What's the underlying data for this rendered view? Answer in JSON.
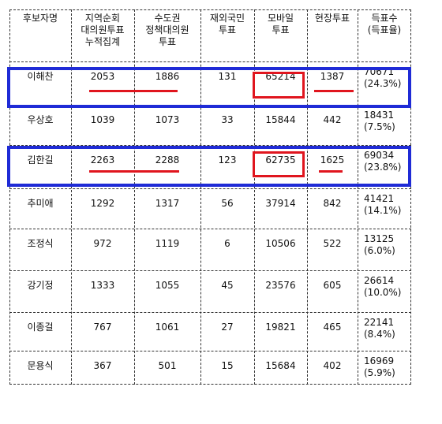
{
  "headers": [
    [
      "후보자명"
    ],
    [
      "지역순회",
      "대의원투표",
      "누적집계"
    ],
    [
      "수도권",
      "정책대의원",
      "투표"
    ],
    [
      "재외국민",
      "투표"
    ],
    [
      "모바일",
      "투표"
    ],
    [
      "현장투표"
    ],
    [
      "득표수",
      "(득표율)"
    ]
  ],
  "rows": [
    {
      "name": "이해찬",
      "regional": "2053",
      "metro": "1886",
      "overseas": "131",
      "mobile": "65214",
      "onsite": "1387",
      "total": "70671",
      "pct": "(24.3%)"
    },
    {
      "name": "우상호",
      "regional": "1039",
      "metro": "1073",
      "overseas": "33",
      "mobile": "15844",
      "onsite": "442",
      "total": "18431",
      "pct": "(7.5%)"
    },
    {
      "name": "김한길",
      "regional": "2263",
      "metro": "2288",
      "overseas": "123",
      "mobile": "62735",
      "onsite": "1625",
      "total": "69034",
      "pct": "(23.8%)"
    },
    {
      "name": "추미애",
      "regional": "1292",
      "metro": "1317",
      "overseas": "56",
      "mobile": "37914",
      "onsite": "842",
      "total": "41421",
      "pct": "(14.1%)"
    },
    {
      "name": "조정식",
      "regional": "972",
      "metro": "1119",
      "overseas": "6",
      "mobile": "10506",
      "onsite": "522",
      "total": "13125",
      "pct": "(6.0%)"
    },
    {
      "name": "강기정",
      "regional": "1333",
      "metro": "1055",
      "overseas": "45",
      "mobile": "23576",
      "onsite": "605",
      "total": "26614",
      "pct": "(10.0%)"
    },
    {
      "name": "이종걸",
      "regional": "767",
      "metro": "1061",
      "overseas": "27",
      "mobile": "19821",
      "onsite": "465",
      "total": "22141",
      "pct": "(8.4%)"
    },
    {
      "name": "문용식",
      "regional": "367",
      "metro": "501",
      "overseas": "15",
      "mobile": "15684",
      "onsite": "402",
      "total": "16969",
      "pct": "(5.9%)"
    }
  ],
  "colors": {
    "highlight_box": "#1f2bd6",
    "highlight_mark": "#e0151e"
  }
}
